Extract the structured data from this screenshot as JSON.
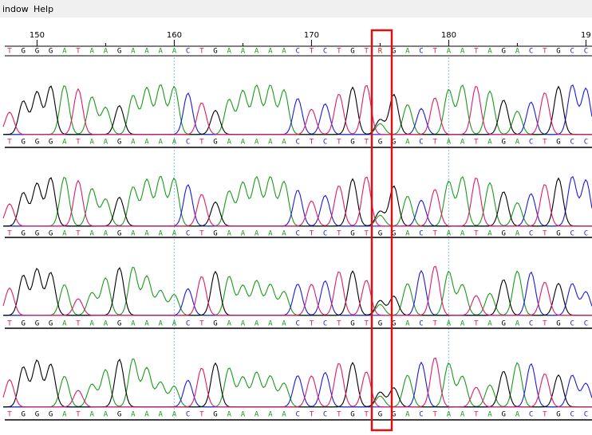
{
  "menu": [
    "indow",
    "Help"
  ],
  "ruler": [
    "150",
    "160",
    "170",
    "180",
    "19"
  ],
  "consensus": [
    "T",
    "G",
    "G",
    "G",
    "A",
    "T",
    "A",
    "A",
    "G",
    "A",
    "A",
    "A",
    "A",
    "C",
    "T",
    "G",
    "A",
    "A",
    "A",
    "A",
    "A",
    "C",
    "T",
    "C",
    "T",
    "G",
    "T",
    "R",
    "G",
    "A",
    "C",
    "T",
    "A",
    "A",
    "T",
    "A",
    "G",
    "A",
    "C",
    "T",
    "G",
    "C",
    "C"
  ],
  "traces": [
    {
      "sequence": [
        "T",
        "G",
        "G",
        "G",
        "A",
        "T",
        "A",
        "A",
        "G",
        "A",
        "A",
        "A",
        "A",
        "C",
        "T",
        "G",
        "A",
        "A",
        "A",
        "A",
        "A",
        "C",
        "T",
        "C",
        "T",
        "G",
        "T",
        "G",
        "G",
        "A",
        "C",
        "T",
        "A",
        "A",
        "T",
        "A",
        "G",
        "A",
        "C",
        "T",
        "G",
        "C",
        "C"
      ]
    },
    {
      "sequence": [
        "T",
        "G",
        "G",
        "G",
        "A",
        "T",
        "A",
        "A",
        "G",
        "A",
        "A",
        "A",
        "A",
        "C",
        "T",
        "G",
        "A",
        "A",
        "A",
        "A",
        "A",
        "C",
        "T",
        "C",
        "T",
        "G",
        "T",
        "G",
        "G",
        "A",
        "C",
        "T",
        "A",
        "A",
        "T",
        "A",
        "G",
        "A",
        "C",
        "T",
        "G",
        "C",
        "C"
      ]
    },
    {
      "sequence": [
        "T",
        "G",
        "G",
        "G",
        "A",
        "T",
        "A",
        "A",
        "G",
        "A",
        "A",
        "A",
        "A",
        "C",
        "T",
        "G",
        "A",
        "A",
        "A",
        "A",
        "A",
        "C",
        "T",
        "C",
        "T",
        "G",
        "T",
        "G",
        "G",
        "A",
        "C",
        "T",
        "A",
        "A",
        "T",
        "A",
        "G",
        "A",
        "C",
        "T",
        "G",
        "C",
        "C"
      ]
    },
    {
      "sequence": [
        "T",
        "G",
        "G",
        "G",
        "A",
        "T",
        "A",
        "A",
        "G",
        "A",
        "A",
        "A",
        "A",
        "C",
        "T",
        "G",
        "A",
        "A",
        "A",
        "A",
        "A",
        "C",
        "T",
        "C",
        "T",
        "G",
        "T",
        "G",
        "G",
        "A",
        "C",
        "T",
        "A",
        "A",
        "T",
        "A",
        "G",
        "A",
        "C",
        "T",
        "G",
        "C",
        "C"
      ]
    }
  ]
}
